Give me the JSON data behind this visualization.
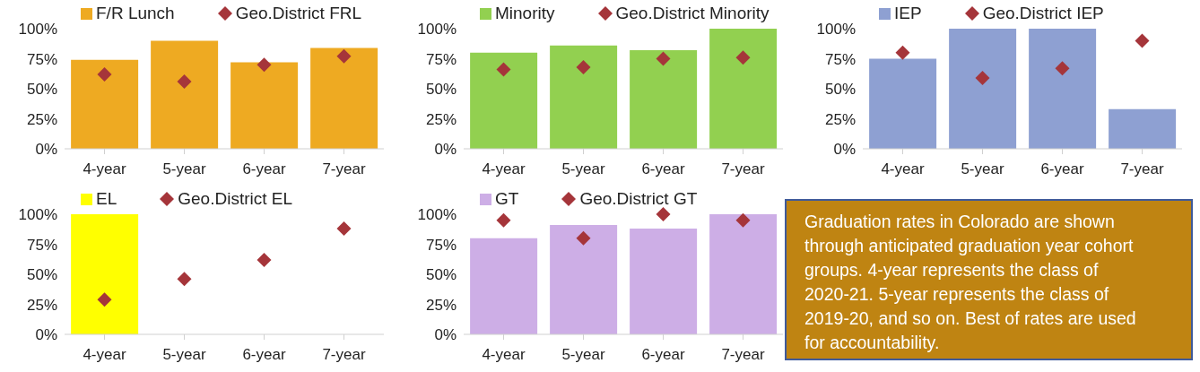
{
  "chart_data": [
    {
      "type": "bar",
      "categories": [
        "4-year",
        "5-year",
        "6-year",
        "7-year"
      ],
      "ylim": [
        0,
        100
      ],
      "yticks": [
        {
          "value": 0,
          "label": "0%"
        },
        {
          "value": 25,
          "label": "25%"
        },
        {
          "value": 50,
          "label": "50%"
        },
        {
          "value": 75,
          "label": "75%"
        },
        {
          "value": 100,
          "label": "100%"
        }
      ],
      "grid": false,
      "legend": "top",
      "marker": "diamond",
      "series": [
        {
          "name": "F/R Lunch",
          "type": "bar",
          "color": "#eeaa22",
          "values": [
            74,
            90,
            72,
            84
          ]
        },
        {
          "name": "Geo.District FRL",
          "type": "scatter",
          "color": "#a5353a",
          "values": [
            62,
            56,
            70,
            77
          ]
        }
      ]
    },
    {
      "type": "bar",
      "categories": [
        "4-year",
        "5-year",
        "6-year",
        "7-year"
      ],
      "ylim": [
        0,
        100
      ],
      "yticks": [
        {
          "value": 0,
          "label": "0%"
        },
        {
          "value": 25,
          "label": "25%"
        },
        {
          "value": 50,
          "label": "50%"
        },
        {
          "value": 75,
          "label": "75%"
        },
        {
          "value": 100,
          "label": "100%"
        }
      ],
      "grid": false,
      "legend": "top",
      "marker": "diamond",
      "series": [
        {
          "name": "Minority",
          "type": "bar",
          "color": "#92d050",
          "values": [
            80,
            86,
            82,
            100
          ]
        },
        {
          "name": "Geo.District Minority",
          "type": "scatter",
          "color": "#a5353a",
          "values": [
            66,
            68,
            75,
            76
          ]
        }
      ]
    },
    {
      "type": "bar",
      "categories": [
        "4-year",
        "5-year",
        "6-year",
        "7-year"
      ],
      "ylim": [
        0,
        100
      ],
      "yticks": [
        {
          "value": 0,
          "label": "0%"
        },
        {
          "value": 25,
          "label": "25%"
        },
        {
          "value": 50,
          "label": "50%"
        },
        {
          "value": 75,
          "label": "75%"
        },
        {
          "value": 100,
          "label": "100%"
        }
      ],
      "grid": false,
      "legend": "top",
      "marker": "diamond",
      "series": [
        {
          "name": "IEP",
          "type": "bar",
          "color": "#8ea0d2",
          "values": [
            75,
            100,
            100,
            33
          ]
        },
        {
          "name": "Geo.District IEP",
          "type": "scatter",
          "color": "#a5353a",
          "values": [
            80,
            59,
            67,
            90
          ]
        }
      ]
    },
    {
      "type": "bar",
      "categories": [
        "4-year",
        "5-year",
        "6-year",
        "7-year"
      ],
      "ylim": [
        0,
        100
      ],
      "yticks": [
        {
          "value": 0,
          "label": "0%"
        },
        {
          "value": 25,
          "label": "25%"
        },
        {
          "value": 50,
          "label": "50%"
        },
        {
          "value": 75,
          "label": "75%"
        },
        {
          "value": 100,
          "label": "100%"
        }
      ],
      "grid": false,
      "legend": "top",
      "marker": "diamond",
      "series": [
        {
          "name": "EL",
          "type": "bar",
          "color": "#ffff00",
          "values": [
            100,
            null,
            null,
            null
          ]
        },
        {
          "name": "Geo.District EL",
          "type": "scatter",
          "color": "#a5353a",
          "values": [
            29,
            46,
            62,
            88
          ]
        }
      ]
    },
    {
      "type": "bar",
      "categories": [
        "4-year",
        "5-year",
        "6-year",
        "7-year"
      ],
      "ylim": [
        0,
        100
      ],
      "yticks": [
        {
          "value": 0,
          "label": "0%"
        },
        {
          "value": 25,
          "label": "25%"
        },
        {
          "value": 50,
          "label": "50%"
        },
        {
          "value": 75,
          "label": "75%"
        },
        {
          "value": 100,
          "label": "100%"
        }
      ],
      "grid": false,
      "legend": "top",
      "marker": "diamond",
      "series": [
        {
          "name": "GT",
          "type": "bar",
          "color": "#cdaee6",
          "values": [
            80,
            91,
            88,
            100
          ]
        },
        {
          "name": "Geo.District GT",
          "type": "scatter",
          "color": "#a5353a",
          "values": [
            95,
            80,
            100,
            95
          ]
        }
      ]
    },
    {
      "type": "other",
      "annotations": [
        "Graduation rates in Colorado are shown through anticipated graduation year cohort groups. 4-year represents the class of 2020-21. 5-year represents the class of 2019-20, and so on. Best of rates are used for accountability."
      ]
    }
  ]
}
